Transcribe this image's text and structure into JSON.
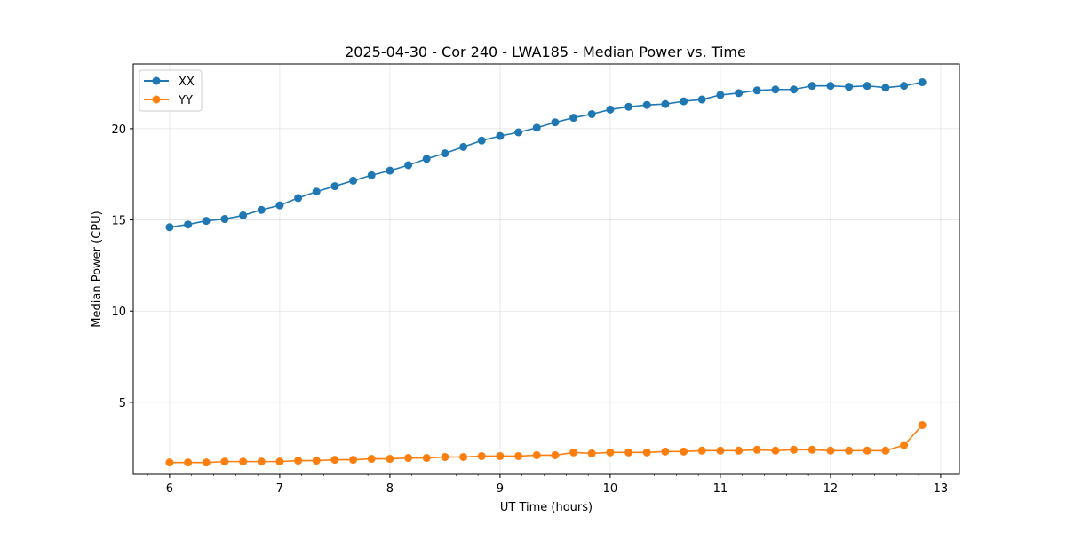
{
  "chart_data": {
    "type": "line",
    "title": "2025-04-30 - Cor 240 - LWA185 - Median Power vs. Time",
    "xlabel": "UT Time (hours)",
    "ylabel": "Median Power (CPU)",
    "xlim": [
      5.67,
      13.17
    ],
    "ylim": [
      1.05,
      23.55
    ],
    "xticks": [
      6,
      7,
      8,
      9,
      10,
      11,
      12,
      13
    ],
    "xtick_labels": [
      "6",
      "7",
      "8",
      "9",
      "10",
      "11",
      "12",
      "13"
    ],
    "xminor_step": 0.2,
    "yticks": [
      5,
      10,
      15,
      20
    ],
    "ytick_labels": [
      "5",
      "10",
      "15",
      "20"
    ],
    "grid": true,
    "legend_position": "top-left",
    "x": [
      6.0,
      6.167,
      6.333,
      6.5,
      6.667,
      6.833,
      7.0,
      7.167,
      7.333,
      7.5,
      7.667,
      7.833,
      8.0,
      8.167,
      8.333,
      8.5,
      8.667,
      8.833,
      9.0,
      9.167,
      9.333,
      9.5,
      9.667,
      9.833,
      10.0,
      10.167,
      10.333,
      10.5,
      10.667,
      10.833,
      11.0,
      11.167,
      11.333,
      11.5,
      11.667,
      11.833,
      12.0,
      12.167,
      12.333,
      12.5,
      12.667,
      12.833
    ],
    "series": [
      {
        "name": "XX",
        "color": "#1f77b4",
        "values": [
          14.6,
          14.75,
          14.95,
          15.05,
          15.25,
          15.55,
          15.8,
          16.2,
          16.55,
          16.85,
          17.15,
          17.45,
          17.7,
          18.0,
          18.35,
          18.65,
          19.0,
          19.35,
          19.6,
          19.8,
          20.05,
          20.35,
          20.6,
          20.8,
          21.05,
          21.2,
          21.3,
          21.35,
          21.5,
          21.6,
          21.85,
          21.95,
          22.1,
          22.15,
          22.15,
          22.35,
          22.35,
          22.3,
          22.35,
          22.25,
          22.35,
          22.55
        ]
      },
      {
        "name": "YY",
        "color": "#ff7f0e",
        "values": [
          1.7,
          1.7,
          1.7,
          1.75,
          1.75,
          1.75,
          1.75,
          1.8,
          1.8,
          1.85,
          1.85,
          1.9,
          1.9,
          1.95,
          1.95,
          2.0,
          2.0,
          2.05,
          2.05,
          2.05,
          2.1,
          2.1,
          2.25,
          2.2,
          2.25,
          2.25,
          2.25,
          2.3,
          2.3,
          2.35,
          2.35,
          2.35,
          2.4,
          2.35,
          2.4,
          2.4,
          2.35,
          2.35,
          2.35,
          2.35,
          2.65,
          3.75
        ]
      }
    ]
  }
}
